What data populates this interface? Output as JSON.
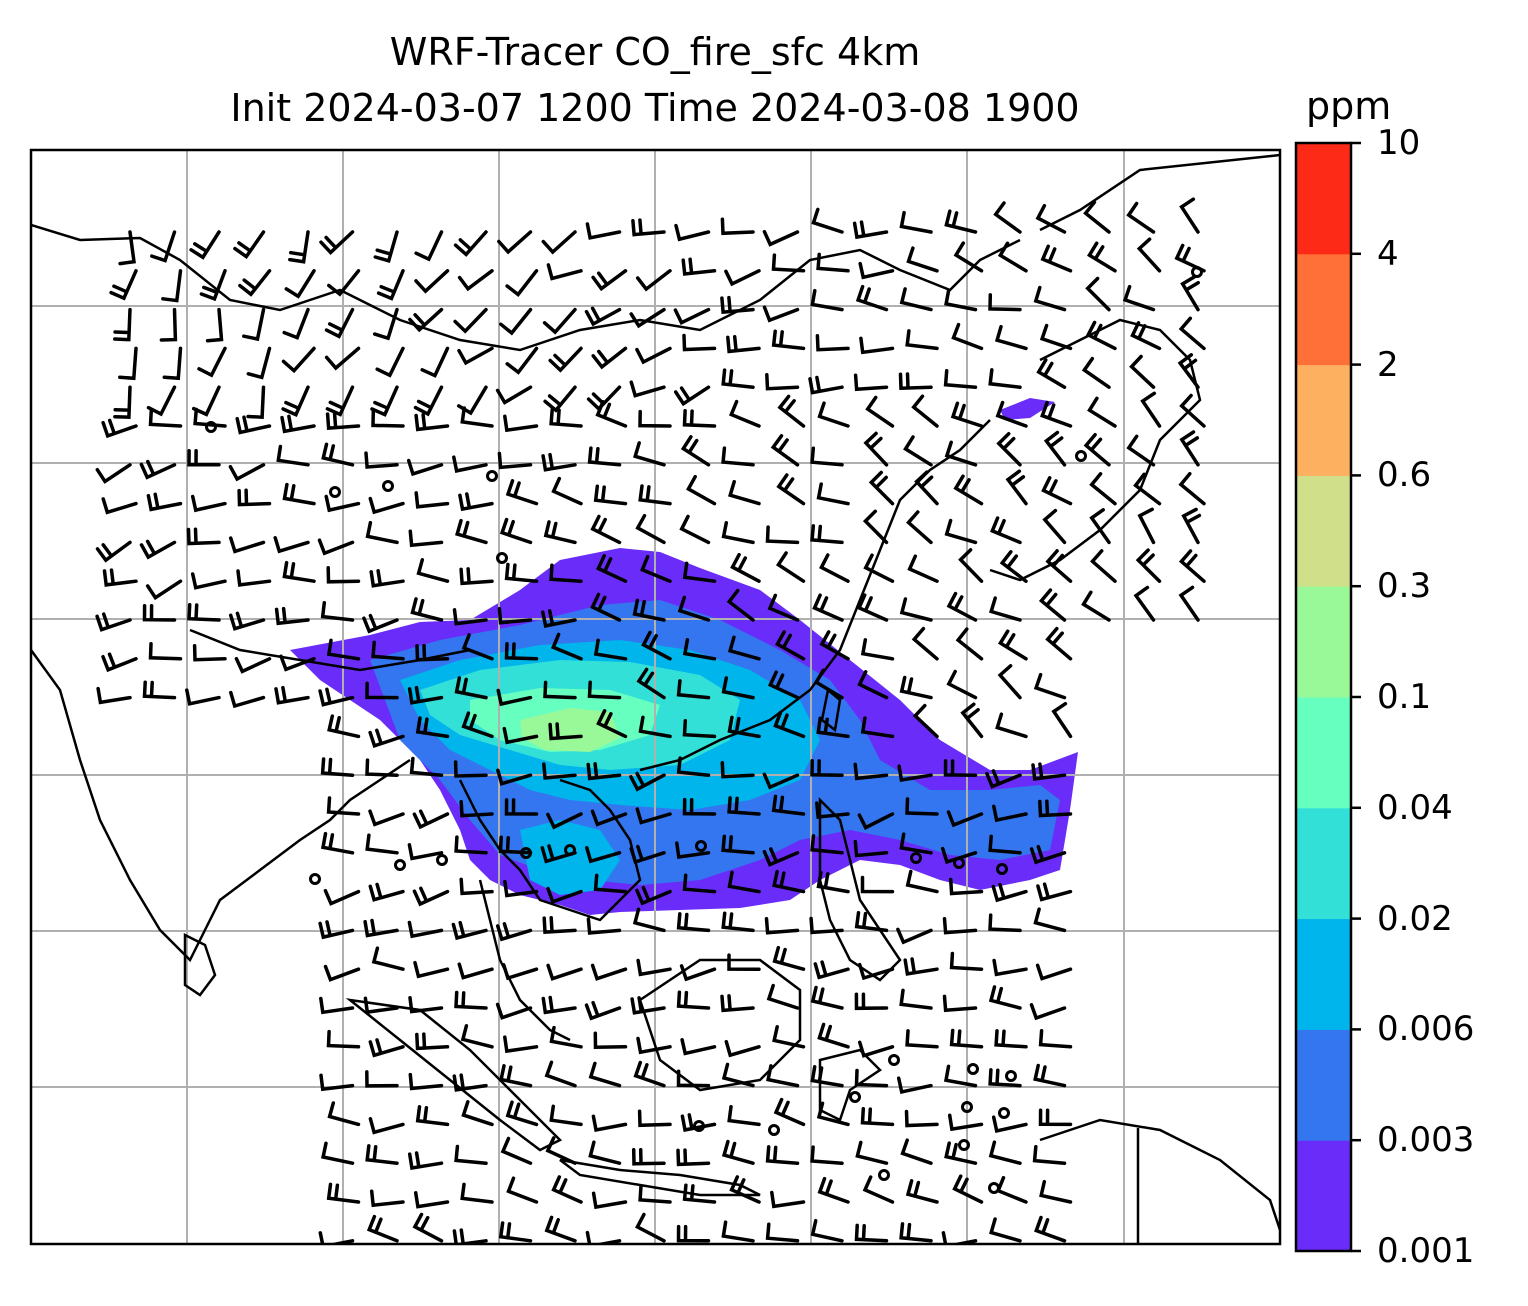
{
  "title": {
    "line1": "WRF-Tracer CO_fire_sfc 4km",
    "line2": "Init 2024-03-07 1200 Time 2024-03-08 1900"
  },
  "colorbar": {
    "units": "ppm",
    "levels": [
      "0.001",
      "0.003",
      "0.006",
      "0.02",
      "0.04",
      "0.1",
      "0.3",
      "0.6",
      "2",
      "4",
      "10"
    ],
    "colors": [
      "#6a2cf8",
      "#3376f0",
      "#00b4ec",
      "#33e0d8",
      "#66ffc0",
      "#99f898",
      "#d0e08a",
      "#fdb060",
      "#ff7038",
      "#fe2a18"
    ]
  },
  "map": {
    "gridlines": true,
    "grid_color": "#b0b0b0",
    "coastline_color": "#000000",
    "wind_barbs": true
  }
}
